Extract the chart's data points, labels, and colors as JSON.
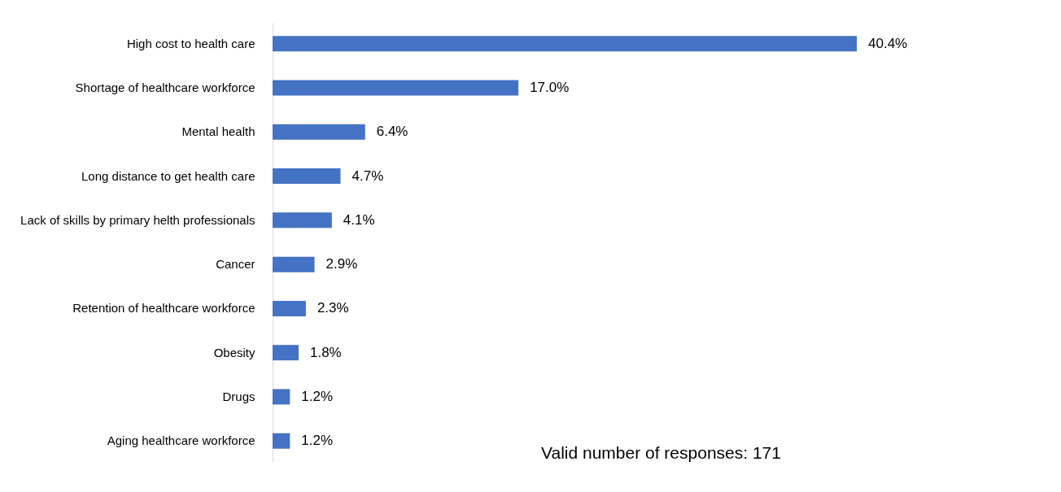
{
  "chart_data": {
    "type": "bar",
    "orientation": "horizontal",
    "categories": [
      "High cost to health care",
      "Shortage of healthcare workforce",
      "Mental health",
      "Long distance to get health care",
      "Lack of skills by primary helth professionals",
      "Cancer",
      "Retention of healthcare workforce",
      "Obesity",
      "Drugs",
      "Aging healthcare workforce"
    ],
    "values": [
      40.4,
      17.0,
      6.4,
      4.7,
      4.1,
      2.9,
      2.3,
      1.8,
      1.2,
      1.2
    ],
    "value_labels": [
      "40.4%",
      "17.0%",
      "6.4%",
      "4.7%",
      "4.1%",
      "2.9%",
      "2.3%",
      "1.8%",
      "1.2%",
      "1.2%"
    ],
    "color": "#4472c4",
    "annotations": [
      "Valid number of responses: 171"
    ]
  }
}
